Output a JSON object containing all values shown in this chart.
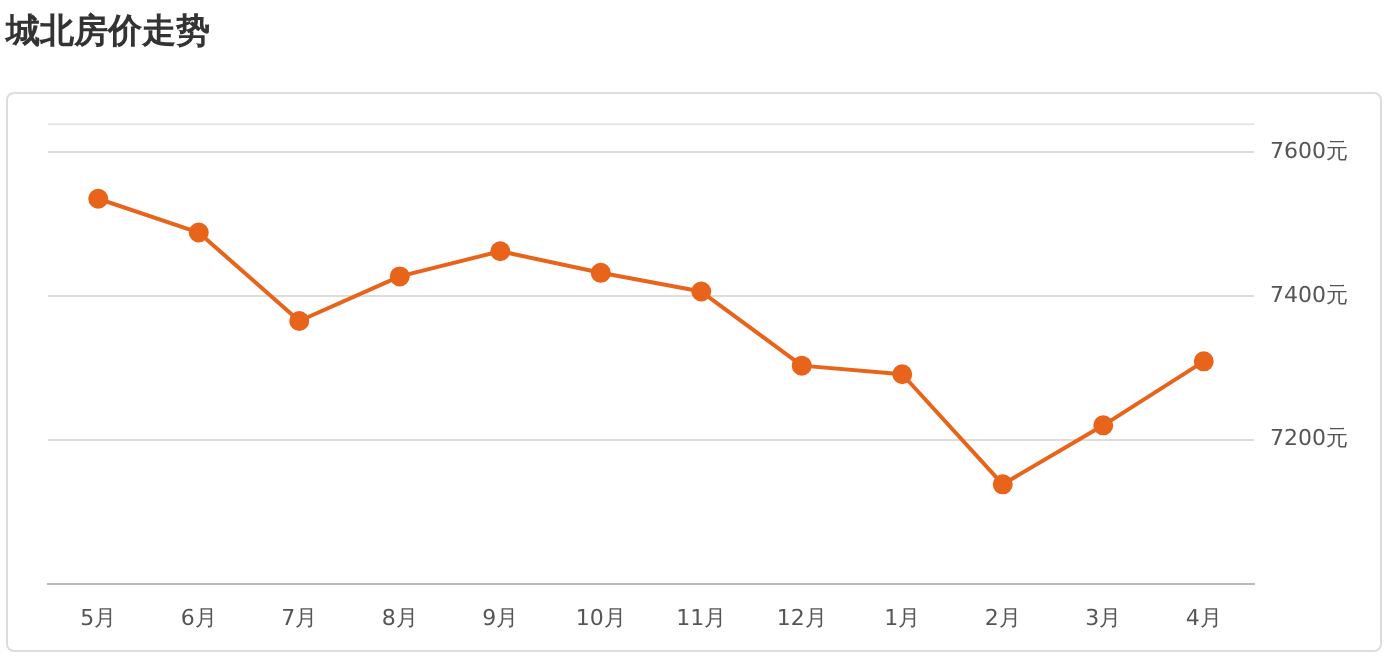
{
  "chart_data": {
    "type": "line",
    "title": "城北房价走势",
    "categories": [
      "5月",
      "6月",
      "7月",
      "8月",
      "9月",
      "10月",
      "11月",
      "12月",
      "1月",
      "2月",
      "3月",
      "4月"
    ],
    "series": [
      {
        "color": "#e8641b",
        "values": [
          7535,
          7488,
          7365,
          7427,
          7462,
          7432,
          7406,
          7303,
          7291,
          7138,
          7220,
          7309
        ]
      }
    ],
    "ylim": [
      7000,
      7640
    ],
    "yticks": [
      {
        "value": 7200,
        "label": "7200元"
      },
      {
        "value": 7400,
        "label": "7400元"
      },
      {
        "value": 7600,
        "label": "7600元"
      }
    ],
    "grid": "y",
    "marker": "circle",
    "line_style": "solid",
    "legend": false
  }
}
